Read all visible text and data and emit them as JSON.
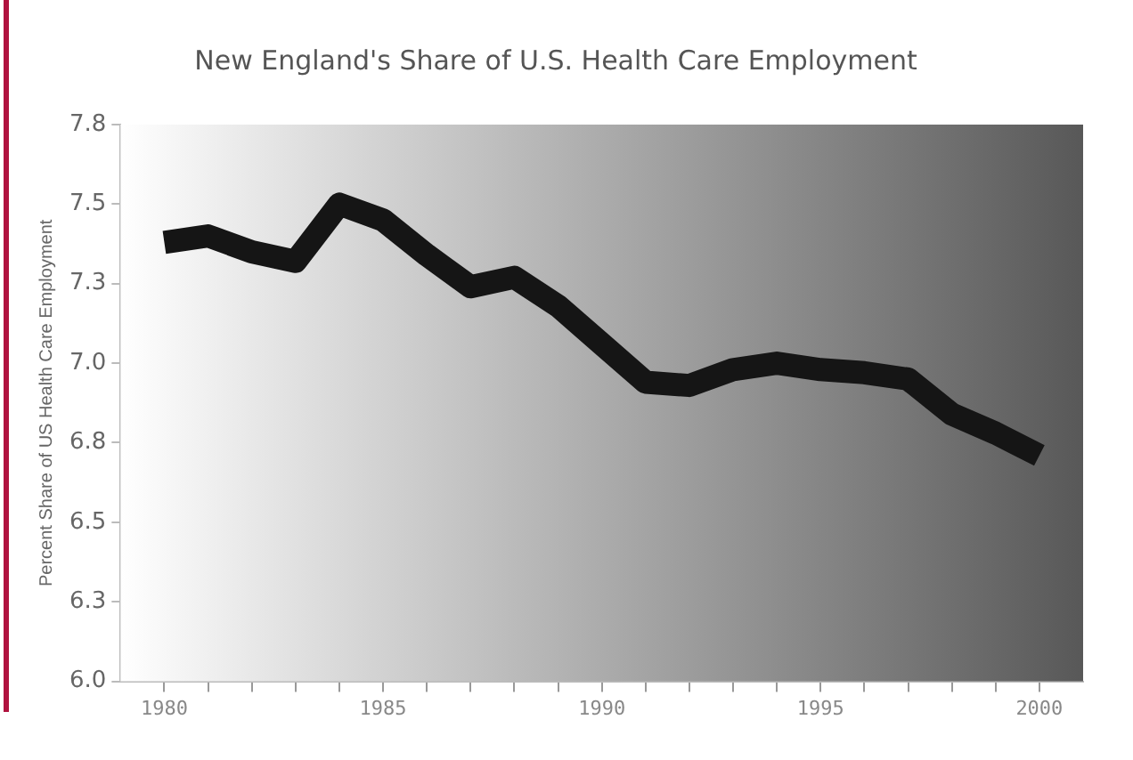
{
  "chart_data": {
    "type": "line",
    "title": "New England's Share of U.S. Health Care Employment",
    "ylabel": "Percent Share of US Health Care Employment",
    "x": [
      1980,
      1981,
      1982,
      1983,
      1984,
      1985,
      1986,
      1987,
      1988,
      1989,
      1990,
      1991,
      1992,
      1993,
      1994,
      1995,
      1996,
      1997,
      1998,
      1999,
      2000
    ],
    "series": [
      {
        "color": "#151515",
        "values": [
          7.38,
          7.4,
          7.35,
          7.32,
          7.5,
          7.45,
          7.34,
          7.24,
          7.27,
          7.18,
          7.06,
          6.94,
          6.93,
          6.98,
          7.0,
          6.98,
          6.97,
          6.95,
          6.84,
          6.78,
          6.71
        ]
      }
    ],
    "xlim": [
      1979,
      2001
    ],
    "xticks": [
      1980,
      {
        "value": 1981,
        "label": null
      },
      {
        "value": 1982,
        "label": null
      },
      {
        "value": 1983,
        "label": null
      },
      {
        "value": 1984,
        "label": null
      },
      1985,
      {
        "value": 1986,
        "label": null
      },
      {
        "value": 1987,
        "label": null
      },
      {
        "value": 1988,
        "label": null
      },
      {
        "value": 1989,
        "label": null
      },
      1990,
      {
        "value": 1991,
        "label": null
      },
      {
        "value": 1992,
        "label": null
      },
      {
        "value": 1993,
        "label": null
      },
      {
        "value": 1994,
        "label": null
      },
      1995,
      {
        "value": 1996,
        "label": null
      },
      {
        "value": 1997,
        "label": null
      },
      {
        "value": 1998,
        "label": null
      },
      {
        "value": 1999,
        "label": null
      },
      2000
    ],
    "ylim": [
      6.0,
      7.75
    ],
    "yticks": [
      {
        "value": 6.0,
        "label": "6.0"
      },
      {
        "value": 6.25,
        "label": "6.3"
      },
      6.5,
      {
        "value": 6.75,
        "label": "6.8"
      },
      {
        "value": 7.0,
        "label": "7.0"
      },
      {
        "value": 7.25,
        "label": "7.3"
      },
      {
        "value": 7.5,
        "label": "7.5"
      },
      {
        "value": 7.75,
        "label": "7.8"
      }
    ],
    "grid": false,
    "legend": false,
    "marker": "none",
    "line_style": "solid"
  }
}
